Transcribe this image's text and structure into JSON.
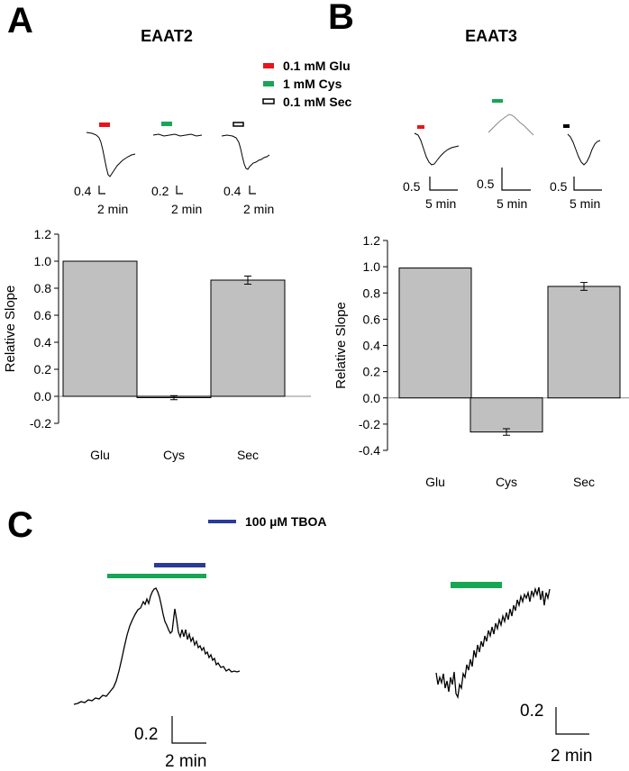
{
  "panels": [
    {
      "letter": "A",
      "title": "EAAT2"
    },
    {
      "letter": "B",
      "title": "EAAT3"
    },
    {
      "letter": "C",
      "title": ""
    }
  ],
  "legend_top": [
    {
      "label": "0.1 mM Glu",
      "color": "#e8141b"
    },
    {
      "label": "1 mM Cys",
      "color": "#17a654"
    },
    {
      "label": "0.1 mM Sec",
      "color": "#000000"
    }
  ],
  "legend_c": {
    "label": "100 µM TBOA",
    "color": "#2b3a98"
  },
  "scale_bars": {
    "A": [
      {
        "v": "0.4",
        "t": "2 min"
      },
      {
        "v": "0.2",
        "t": "2 min"
      },
      {
        "v": "0.4",
        "t": "2 min"
      }
    ],
    "B": [
      {
        "v": "0.5",
        "t": "5 min"
      },
      {
        "v": "0.5",
        "t": "5 min"
      },
      {
        "v": "0.5",
        "t": "5 min"
      }
    ],
    "C": [
      {
        "v": "0.2",
        "t": "2 min"
      },
      {
        "v": "0.2",
        "t": "2 min"
      }
    ]
  },
  "chart_data": [
    {
      "type": "bar",
      "panel": "A",
      "categories": [
        "Glu",
        "Cys",
        "Sec"
      ],
      "values": [
        1.0,
        -0.01,
        0.86
      ],
      "errors": [
        0.0,
        0.015,
        0.03
      ],
      "ylabel": "Relative Slope",
      "ylim": [
        -0.2,
        1.2
      ],
      "yticks": [
        "1.2",
        "1.0",
        "0.8",
        "0.6",
        "0.4",
        "0.2",
        "0.0",
        "-0.2"
      ],
      "bar_color": "#c0c0c0"
    },
    {
      "type": "bar",
      "panel": "B",
      "categories": [
        "Glu",
        "Cys",
        "Sec"
      ],
      "values": [
        0.99,
        -0.26,
        0.85
      ],
      "errors": [
        0.0,
        0.025,
        0.03
      ],
      "ylabel": "Relative Slope",
      "ylim": [
        -0.4,
        1.2
      ],
      "yticks": [
        "1.2",
        "1.0",
        "0.8",
        "0.6",
        "0.4",
        "0.2",
        "0.0",
        "-0.2",
        "-0.4"
      ],
      "bar_color": "#c0c0c0"
    }
  ]
}
